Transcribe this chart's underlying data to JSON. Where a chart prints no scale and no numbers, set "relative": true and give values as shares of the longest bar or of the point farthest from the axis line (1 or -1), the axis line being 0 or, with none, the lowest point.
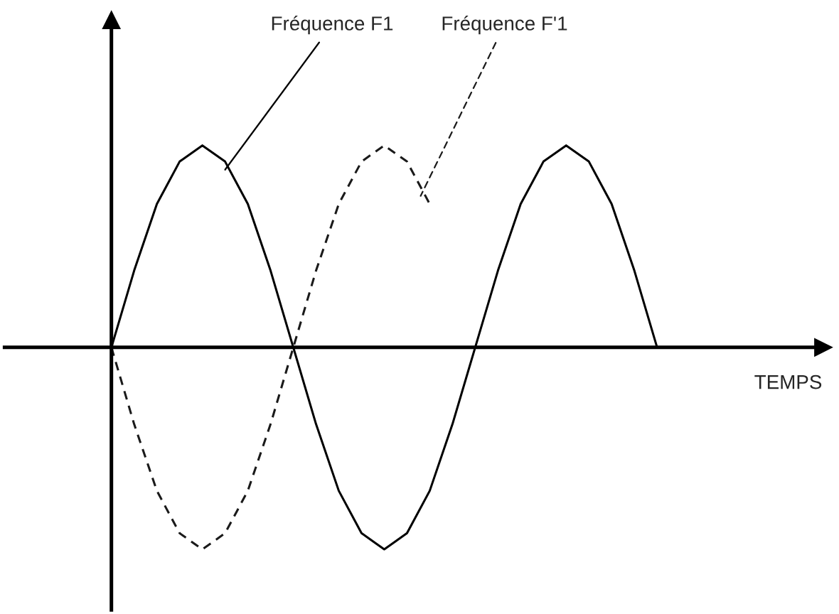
{
  "chart_data": {
    "type": "line",
    "relative": true,
    "xlabel": "TEMPS",
    "categories": [
      null,
      null,
      null,
      null,
      null,
      null,
      null,
      null,
      null,
      null,
      null,
      null,
      null,
      null,
      null,
      null,
      null,
      null,
      null,
      null,
      null,
      null,
      null,
      null,
      null
    ],
    "series": [
      {
        "name": "Fréquence F1",
        "color": "#000000",
        "line_style": "solid",
        "values": [
          0,
          0.38,
          0.71,
          0.92,
          1,
          0.92,
          0.71,
          0.38,
          0,
          -0.38,
          -0.71,
          -0.92,
          -1,
          -0.92,
          -0.71,
          -0.38,
          0,
          0.38,
          0.71,
          0.92,
          1,
          0.92,
          0.71,
          0.38,
          0
        ]
      },
      {
        "name": "Fréquence F'1",
        "color": "#1a1a1a",
        "line_style": "dashed",
        "values": [
          0,
          -0.38,
          -0.71,
          -0.92,
          -1,
          -0.92,
          -0.71,
          -0.38,
          0,
          0.38,
          0.71,
          0.92,
          1,
          0.92,
          0.71,
          null,
          null,
          null,
          null,
          null,
          null,
          null,
          null,
          null,
          null
        ]
      }
    ]
  }
}
